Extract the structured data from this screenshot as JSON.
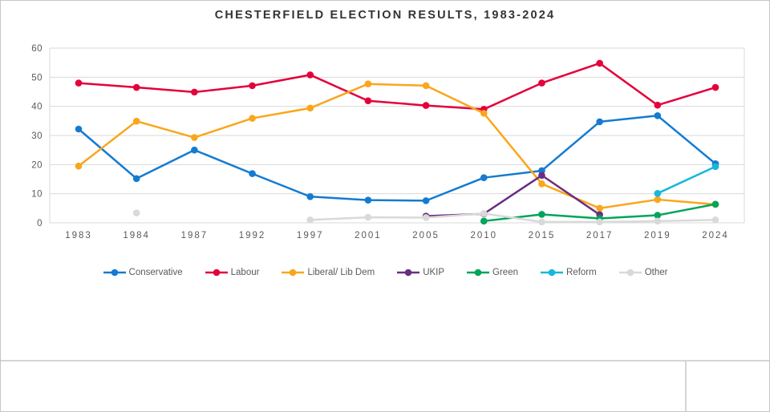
{
  "title": "CHESTERFIELD ELECTION RESULTS, 1983-2024",
  "colors": {
    "grid": "#D9D9D9",
    "axis_text": "#595959",
    "title_text": "#333333",
    "chrome_border": "#C6C6C6",
    "background": "#FFFFFF"
  },
  "chart_data": {
    "type": "line",
    "title": "CHESTERFIELD ELECTION RESULTS, 1983-2024",
    "categories": [
      "1983",
      "1984",
      "1987",
      "1992",
      "1997",
      "2001",
      "2005",
      "2010",
      "2015",
      "2017",
      "2019",
      "2024"
    ],
    "y_ticks": [
      0,
      10,
      20,
      30,
      40,
      50,
      60
    ],
    "y_tick_labels": [
      "0",
      "10",
      "20",
      "30",
      "40",
      "50",
      "60"
    ],
    "ylim": [
      0,
      60
    ],
    "xlabel": "",
    "ylabel": "",
    "grid": true,
    "legend_position": "bottom",
    "series": [
      {
        "name": "Conservative",
        "color": "#147BD1",
        "values": [
          32.2,
          15.2,
          25.0,
          16.9,
          9.0,
          7.8,
          7.6,
          15.5,
          17.9,
          34.7,
          36.8,
          20.3
        ]
      },
      {
        "name": "Labour",
        "color": "#E4003B",
        "values": [
          48.0,
          46.5,
          44.9,
          47.1,
          50.8,
          41.9,
          40.3,
          39.0,
          48.0,
          54.8,
          40.4,
          46.5
        ]
      },
      {
        "name": "Liberal/ Lib Dem",
        "color": "#FAA61A",
        "values": [
          19.5,
          34.9,
          29.3,
          35.9,
          39.4,
          47.7,
          47.1,
          37.6,
          13.4,
          5.0,
          8.0,
          6.3
        ]
      },
      {
        "name": "UKIP",
        "color": "#6A2D84",
        "values": [
          null,
          null,
          null,
          null,
          null,
          null,
          2.3,
          3.1,
          16.3,
          2.8,
          null,
          null
        ]
      },
      {
        "name": "Green",
        "color": "#00A45A",
        "values": [
          null,
          null,
          null,
          null,
          null,
          null,
          null,
          0.6,
          2.9,
          1.5,
          2.6,
          6.4
        ]
      },
      {
        "name": "Reform",
        "color": "#18B7DB",
        "values": [
          null,
          null,
          null,
          null,
          null,
          null,
          null,
          null,
          null,
          null,
          10.1,
          19.3
        ]
      },
      {
        "name": "Other",
        "color": "#D9D9D9",
        "values": [
          null,
          3.4,
          null,
          null,
          1.0,
          1.9,
          1.8,
          3.2,
          0.3,
          0.3,
          0.6,
          1.0
        ]
      }
    ]
  }
}
